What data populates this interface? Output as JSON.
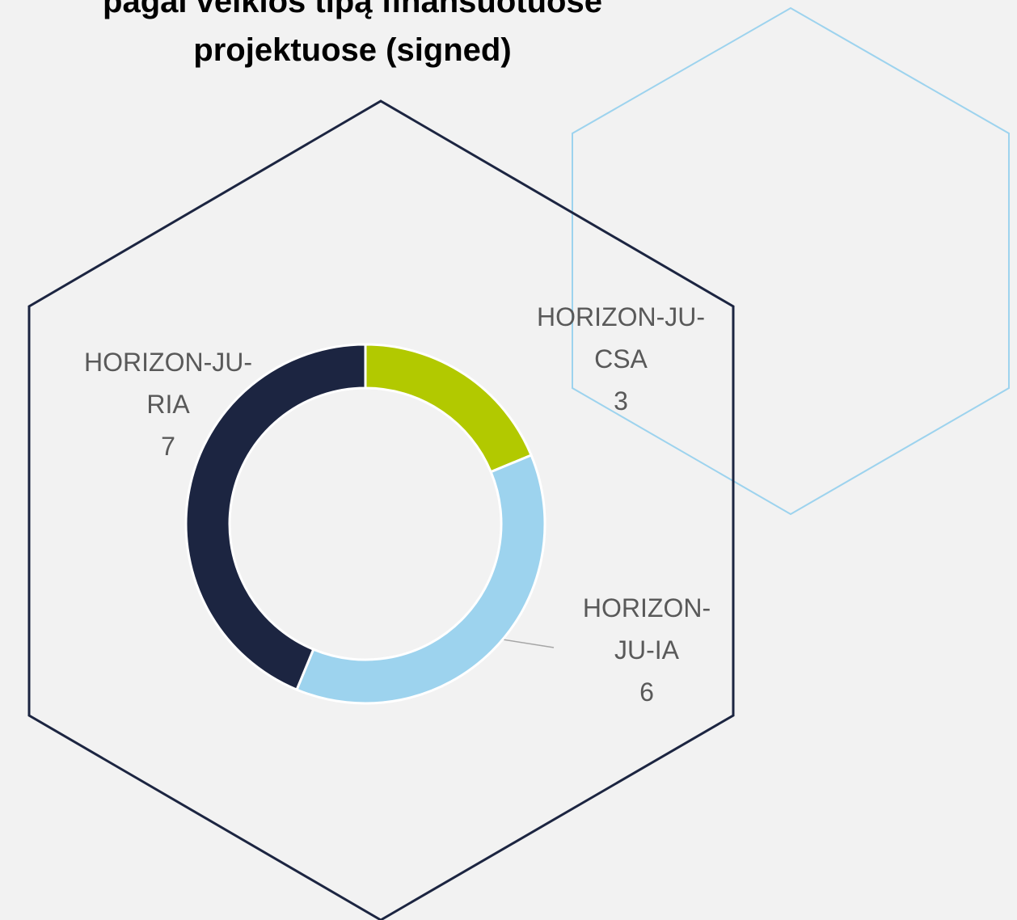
{
  "chart_data": {
    "type": "donut",
    "title": "pagal veiklos tipą finansuotuose projektuose (signed)",
    "categories": [
      "HORIZON-JU-CSA",
      "HORIZON-JU-IA",
      "HORIZON-JU-RIA"
    ],
    "values": [
      3,
      6,
      7
    ],
    "colors": [
      "#b2c900",
      "#9dd3ee",
      "#1c2541"
    ]
  }
}
